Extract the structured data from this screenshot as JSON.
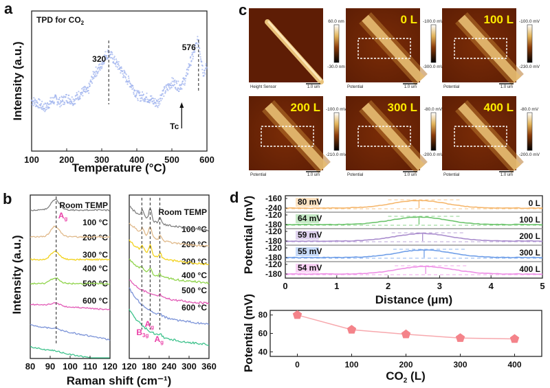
{
  "chart_data": [
    {
      "panel": "a",
      "type": "scatter",
      "title": "TPD for CO2",
      "title_main": "TPD for CO",
      "title_sub": "2",
      "xlabel": "Temperature (°C)",
      "ylabel": "Intensity (a.u.)",
      "xlim": [
        100,
        600
      ],
      "xticks": [
        "100",
        "200",
        "300",
        "400",
        "500",
        "600"
      ],
      "series_color": "#9db1ee",
      "x": [
        100,
        110,
        120,
        130,
        140,
        150,
        160,
        170,
        180,
        190,
        200,
        210,
        220,
        230,
        240,
        250,
        260,
        270,
        280,
        290,
        300,
        310,
        320,
        330,
        340,
        350,
        360,
        370,
        380,
        390,
        400,
        410,
        420,
        430,
        440,
        450,
        460,
        470,
        480,
        490,
        500,
        510,
        520,
        530,
        540,
        550,
        560,
        570,
        576,
        580,
        590,
        600
      ],
      "y": [
        0.36,
        0.35,
        0.34,
        0.32,
        0.31,
        0.34,
        0.36,
        0.37,
        0.35,
        0.36,
        0.38,
        0.37,
        0.36,
        0.39,
        0.41,
        0.43,
        0.42,
        0.5,
        0.56,
        0.58,
        0.62,
        0.68,
        0.7,
        0.67,
        0.63,
        0.6,
        0.56,
        0.52,
        0.49,
        0.45,
        0.4,
        0.39,
        0.39,
        0.38,
        0.37,
        0.35,
        0.34,
        0.4,
        0.43,
        0.46,
        0.49,
        0.48,
        0.46,
        0.48,
        0.52,
        0.62,
        0.68,
        0.76,
        0.8,
        0.72,
        0.56,
        0.6
      ],
      "annotations": [
        {
          "text": "320",
          "x": 320,
          "type": "dashed-vline"
        },
        {
          "text": "576",
          "x": 576,
          "type": "dashed-vline"
        },
        {
          "text": "Tc",
          "x": 528,
          "type": "arrow-up"
        }
      ]
    },
    {
      "panel": "b-left",
      "type": "line",
      "xlabel": "Raman shift (cm⁻¹)",
      "ylabel": "Intensity (a.u.)",
      "xlim": [
        80,
        120
      ],
      "xticks": [
        "80",
        "90",
        "100",
        "110",
        "120"
      ],
      "peak_markers": [
        {
          "x": 93,
          "label": "Ag"
        }
      ],
      "series": [
        {
          "name": "600 °C",
          "color": "#3ec28c",
          "offset": 6,
          "peak_height": 0.05
        },
        {
          "name": "500 °C",
          "color": "#7b93d8",
          "offset": 5,
          "peak_height": 0.1
        },
        {
          "name": "400 °C",
          "color": "#e25ab6",
          "offset": 4,
          "peak_height": 0.25
        },
        {
          "name": "300 °C",
          "color": "#8fd44a",
          "offset": 3,
          "peak_height": 0.45
        },
        {
          "name": "200 °C",
          "color": "#f2d21c",
          "offset": 2,
          "peak_height": 0.65
        },
        {
          "name": "100 °C",
          "color": "#e0b98a",
          "offset": 1,
          "peak_height": 0.85
        },
        {
          "name": "Room TEMP",
          "color": "#808080",
          "offset": 0,
          "peak_height": 0.85
        }
      ]
    },
    {
      "panel": "b-right",
      "type": "line",
      "xlabel": "Raman shift (cm⁻¹)",
      "xlim": [
        120,
        360
      ],
      "xticks": [
        "120",
        "180",
        "240",
        "300",
        "360"
      ],
      "peak_markers": [
        {
          "x": 158,
          "label": "B3g"
        },
        {
          "x": 183,
          "label": "Ag"
        },
        {
          "x": 212,
          "label": "Ag"
        }
      ],
      "series": [
        {
          "name": "600 °C",
          "color": "#3ec28c",
          "offset": 6
        },
        {
          "name": "500 °C",
          "color": "#7b93d8",
          "offset": 5
        },
        {
          "name": "400 °C",
          "color": "#e25ab6",
          "offset": 4
        },
        {
          "name": "300 °C",
          "color": "#8fd44a",
          "offset": 3
        },
        {
          "name": "200 °C",
          "color": "#f2d21c",
          "offset": 2
        },
        {
          "name": "100 °C",
          "color": "#e0b98a",
          "offset": 1
        },
        {
          "name": "Room TEMP",
          "color": "#808080",
          "offset": 0
        }
      ]
    },
    {
      "panel": "d-top",
      "type": "line",
      "xlabel": "Distance (μm)",
      "ylabel": "Potential (mV)",
      "xlim": [
        0,
        5
      ],
      "xticks": [
        "0",
        "1",
        "2",
        "3",
        "4",
        "5"
      ],
      "series": [
        {
          "name": "0 L",
          "diff_label": "80 mV",
          "color": "#f5b66b",
          "label_bg": "#fde3c2",
          "peak_x": 2.6,
          "ytick_top": "-160",
          "ytick_bottom": "-240"
        },
        {
          "name": "100 L",
          "diff_label": "64 mV",
          "color": "#6cc46c",
          "label_bg": "#c6eac6",
          "peak_x": 2.6,
          "ytick_top": "-120",
          "ytick_bottom": "-180"
        },
        {
          "name": "200 L",
          "diff_label": "59 mV",
          "color": "#a98ccd",
          "label_bg": "#e0d3ef",
          "peak_x": 2.67,
          "ytick_top": "-120",
          "ytick_bottom": "-180"
        },
        {
          "name": "300 L",
          "diff_label": "55 mV",
          "color": "#6e9ee8",
          "label_bg": "#c8dcfa",
          "peak_x": 2.7,
          "ytick_top": "-120",
          "ytick_bottom": "-180"
        },
        {
          "name": "400 L",
          "diff_label": "54 mV",
          "color": "#ee8ee6",
          "label_bg": "#fad3f6",
          "peak_x": 2.73,
          "ytick_top": "-120",
          "ytick_bottom": "-180"
        }
      ]
    },
    {
      "panel": "d-bottom",
      "type": "line",
      "xlabel_main": "CO",
      "xlabel_sub": "2",
      "xlabel_tail": " (L)",
      "ylabel": "Potential (mV)",
      "xlim": [
        -50,
        450
      ],
      "ylim": [
        35,
        85
      ],
      "xticks": [
        "0",
        "100",
        "200",
        "300",
        "400"
      ],
      "yticks": [
        "40",
        "60",
        "80"
      ],
      "x": [
        0,
        100,
        200,
        300,
        400
      ],
      "values": [
        80,
        64,
        59,
        55,
        54
      ],
      "color": "#f4838a",
      "marker": "pentagon"
    }
  ],
  "afm": {
    "panel": "c",
    "images": [
      {
        "id": "height",
        "caption": "Height Sensor",
        "dose": "",
        "cbar_top": "60.0 nm",
        "cbar_bottom": "-30.0 nm",
        "scale": "1.0 um"
      },
      {
        "id": "0L",
        "caption": "Potential",
        "dose": "0 L",
        "cbar_top": "-100.0 mV",
        "cbar_bottom": "-300.0 mV",
        "scale": "1.0 um"
      },
      {
        "id": "100L",
        "caption": "Potential",
        "dose": "100 L",
        "cbar_top": "-100.0 mV",
        "cbar_bottom": "-230.0 mV",
        "scale": "1.0 um"
      },
      {
        "id": "200L",
        "caption": "Potential",
        "dose": "200 L",
        "cbar_top": "-100.0 mV",
        "cbar_bottom": "-210.0 mV",
        "scale": "1.0 um"
      },
      {
        "id": "300L",
        "caption": "Potential",
        "dose": "300 L",
        "cbar_top": "-80.0 mV",
        "cbar_bottom": "-200.0 mV",
        "scale": "1.0 um"
      },
      {
        "id": "400L",
        "caption": "Potential",
        "dose": "400 L",
        "cbar_top": "-80.0 mV",
        "cbar_bottom": "-200.0 mV",
        "scale": "1.0 um"
      }
    ]
  },
  "panel_letters": {
    "a": "a",
    "b": "b",
    "c": "c",
    "d": "d"
  }
}
